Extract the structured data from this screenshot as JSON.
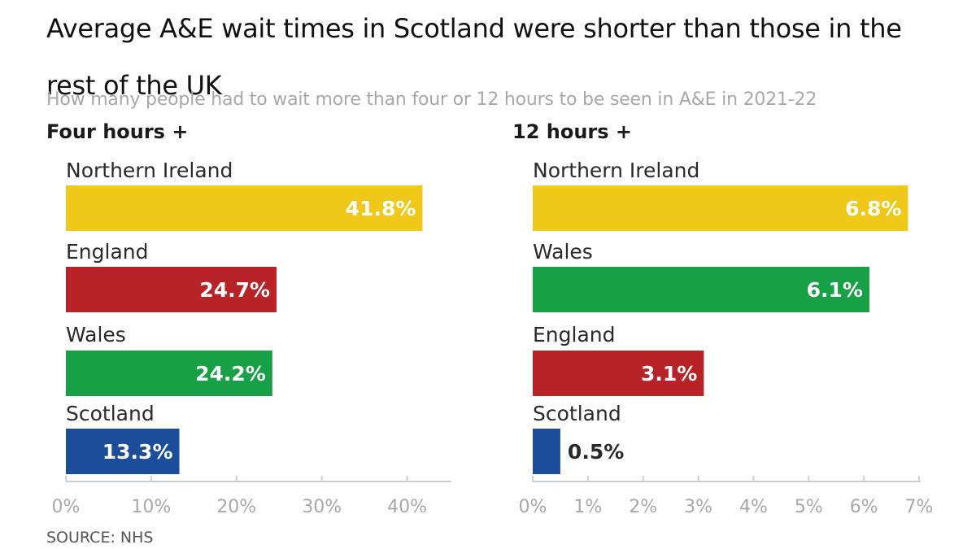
{
  "title": "Average A&E wait times in Scotland were shorter than those in the rest of the UK",
  "subtitle": "How many people had to wait more than four or 12 hours to be seen in A&E in 2021-22",
  "source": "SOURCE: NHS",
  "chart_data": [
    {
      "type": "bar",
      "orientation": "horizontal",
      "title": "Four hours +",
      "unit": "%",
      "xlim": [
        0,
        45
      ],
      "ticks": [
        0,
        10,
        20,
        30,
        40
      ],
      "tick_labels": [
        "0%",
        "10%",
        "20%",
        "30%",
        "40%"
      ],
      "bars": [
        {
          "category": "Northern Ireland",
          "value": 41.8,
          "label": "41.8%",
          "color": "#efc81a"
        },
        {
          "category": "England",
          "value": 24.7,
          "label": "24.7%",
          "color": "#b82327"
        },
        {
          "category": "Wales",
          "value": 24.2,
          "label": "24.2%",
          "color": "#17a045"
        },
        {
          "category": "Scotland",
          "value": 13.3,
          "label": "13.3%",
          "color": "#1c4d9b"
        }
      ]
    },
    {
      "type": "bar",
      "orientation": "horizontal",
      "title": "12 hours +",
      "unit": "%",
      "xlim": [
        0,
        7
      ],
      "ticks": [
        0,
        1,
        2,
        3,
        4,
        5,
        6,
        7
      ],
      "tick_labels": [
        "0%",
        "1%",
        "2%",
        "3%",
        "4%",
        "5%",
        "6%",
        "7%"
      ],
      "bars": [
        {
          "category": "Northern Ireland",
          "value": 6.8,
          "label": "6.8%",
          "color": "#efc81a"
        },
        {
          "category": "Wales",
          "value": 6.1,
          "label": "6.1%",
          "color": "#17a045"
        },
        {
          "category": "England",
          "value": 3.1,
          "label": "3.1%",
          "color": "#b82327"
        },
        {
          "category": "Scotland",
          "value": 0.5,
          "label": "0.5%",
          "color": "#1c4d9b"
        }
      ]
    }
  ]
}
